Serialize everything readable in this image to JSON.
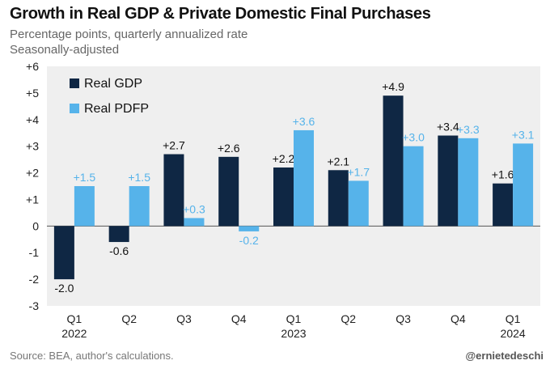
{
  "header": {
    "title": "Growth in Real GDP & Private Domestic Final Purchases",
    "subtitle_1": "Percentage points, quarterly annualized rate",
    "subtitle_2": "Seasonally-adjusted"
  },
  "footer": {
    "source": "Source: BEA, author's calculations.",
    "handle": "@ernietedeschi"
  },
  "colors": {
    "gdp": "#0f2744",
    "pdfp": "#56b3ea",
    "plot_bg": "#efefef",
    "zero_line": "#555555"
  },
  "chart_data": {
    "type": "bar",
    "title": "Growth in Real GDP & Private Domestic Final Purchases",
    "categories": [
      "Q1",
      "Q2",
      "Q3",
      "Q4",
      "Q1",
      "Q2",
      "Q3",
      "Q4",
      "Q1"
    ],
    "category_years": [
      "2022",
      "",
      "",
      "",
      "2023",
      "",
      "",
      "",
      "2024"
    ],
    "series": [
      {
        "name": "Real GDP",
        "values": [
          -2.0,
          -0.6,
          2.7,
          2.6,
          2.2,
          2.1,
          4.9,
          3.4,
          1.6
        ],
        "labels": [
          "-2.0",
          "-0.6",
          "+2.7",
          "+2.6",
          "+2.2",
          "+2.1",
          "+4.9",
          "+3.4",
          "+1.6"
        ]
      },
      {
        "name": "Real PDFP",
        "values": [
          1.5,
          1.5,
          0.3,
          -0.2,
          3.6,
          1.7,
          3.0,
          3.3,
          3.1
        ],
        "labels": [
          "+1.5",
          "+1.5",
          "+0.3",
          "-0.2",
          "+3.6",
          "+1.7",
          "+3.0",
          "+3.3",
          "+3.1"
        ]
      }
    ],
    "ylim": [
      -3,
      6
    ],
    "yticks": [
      -3,
      -2,
      -1,
      0,
      1,
      2,
      3,
      4,
      5,
      6
    ],
    "ytick_labels": [
      "-3",
      "-2",
      "-1",
      "0",
      "+1",
      "+2",
      "+3",
      "+4",
      "+5",
      "+6"
    ],
    "legend_position": "top-left",
    "grid": false
  }
}
